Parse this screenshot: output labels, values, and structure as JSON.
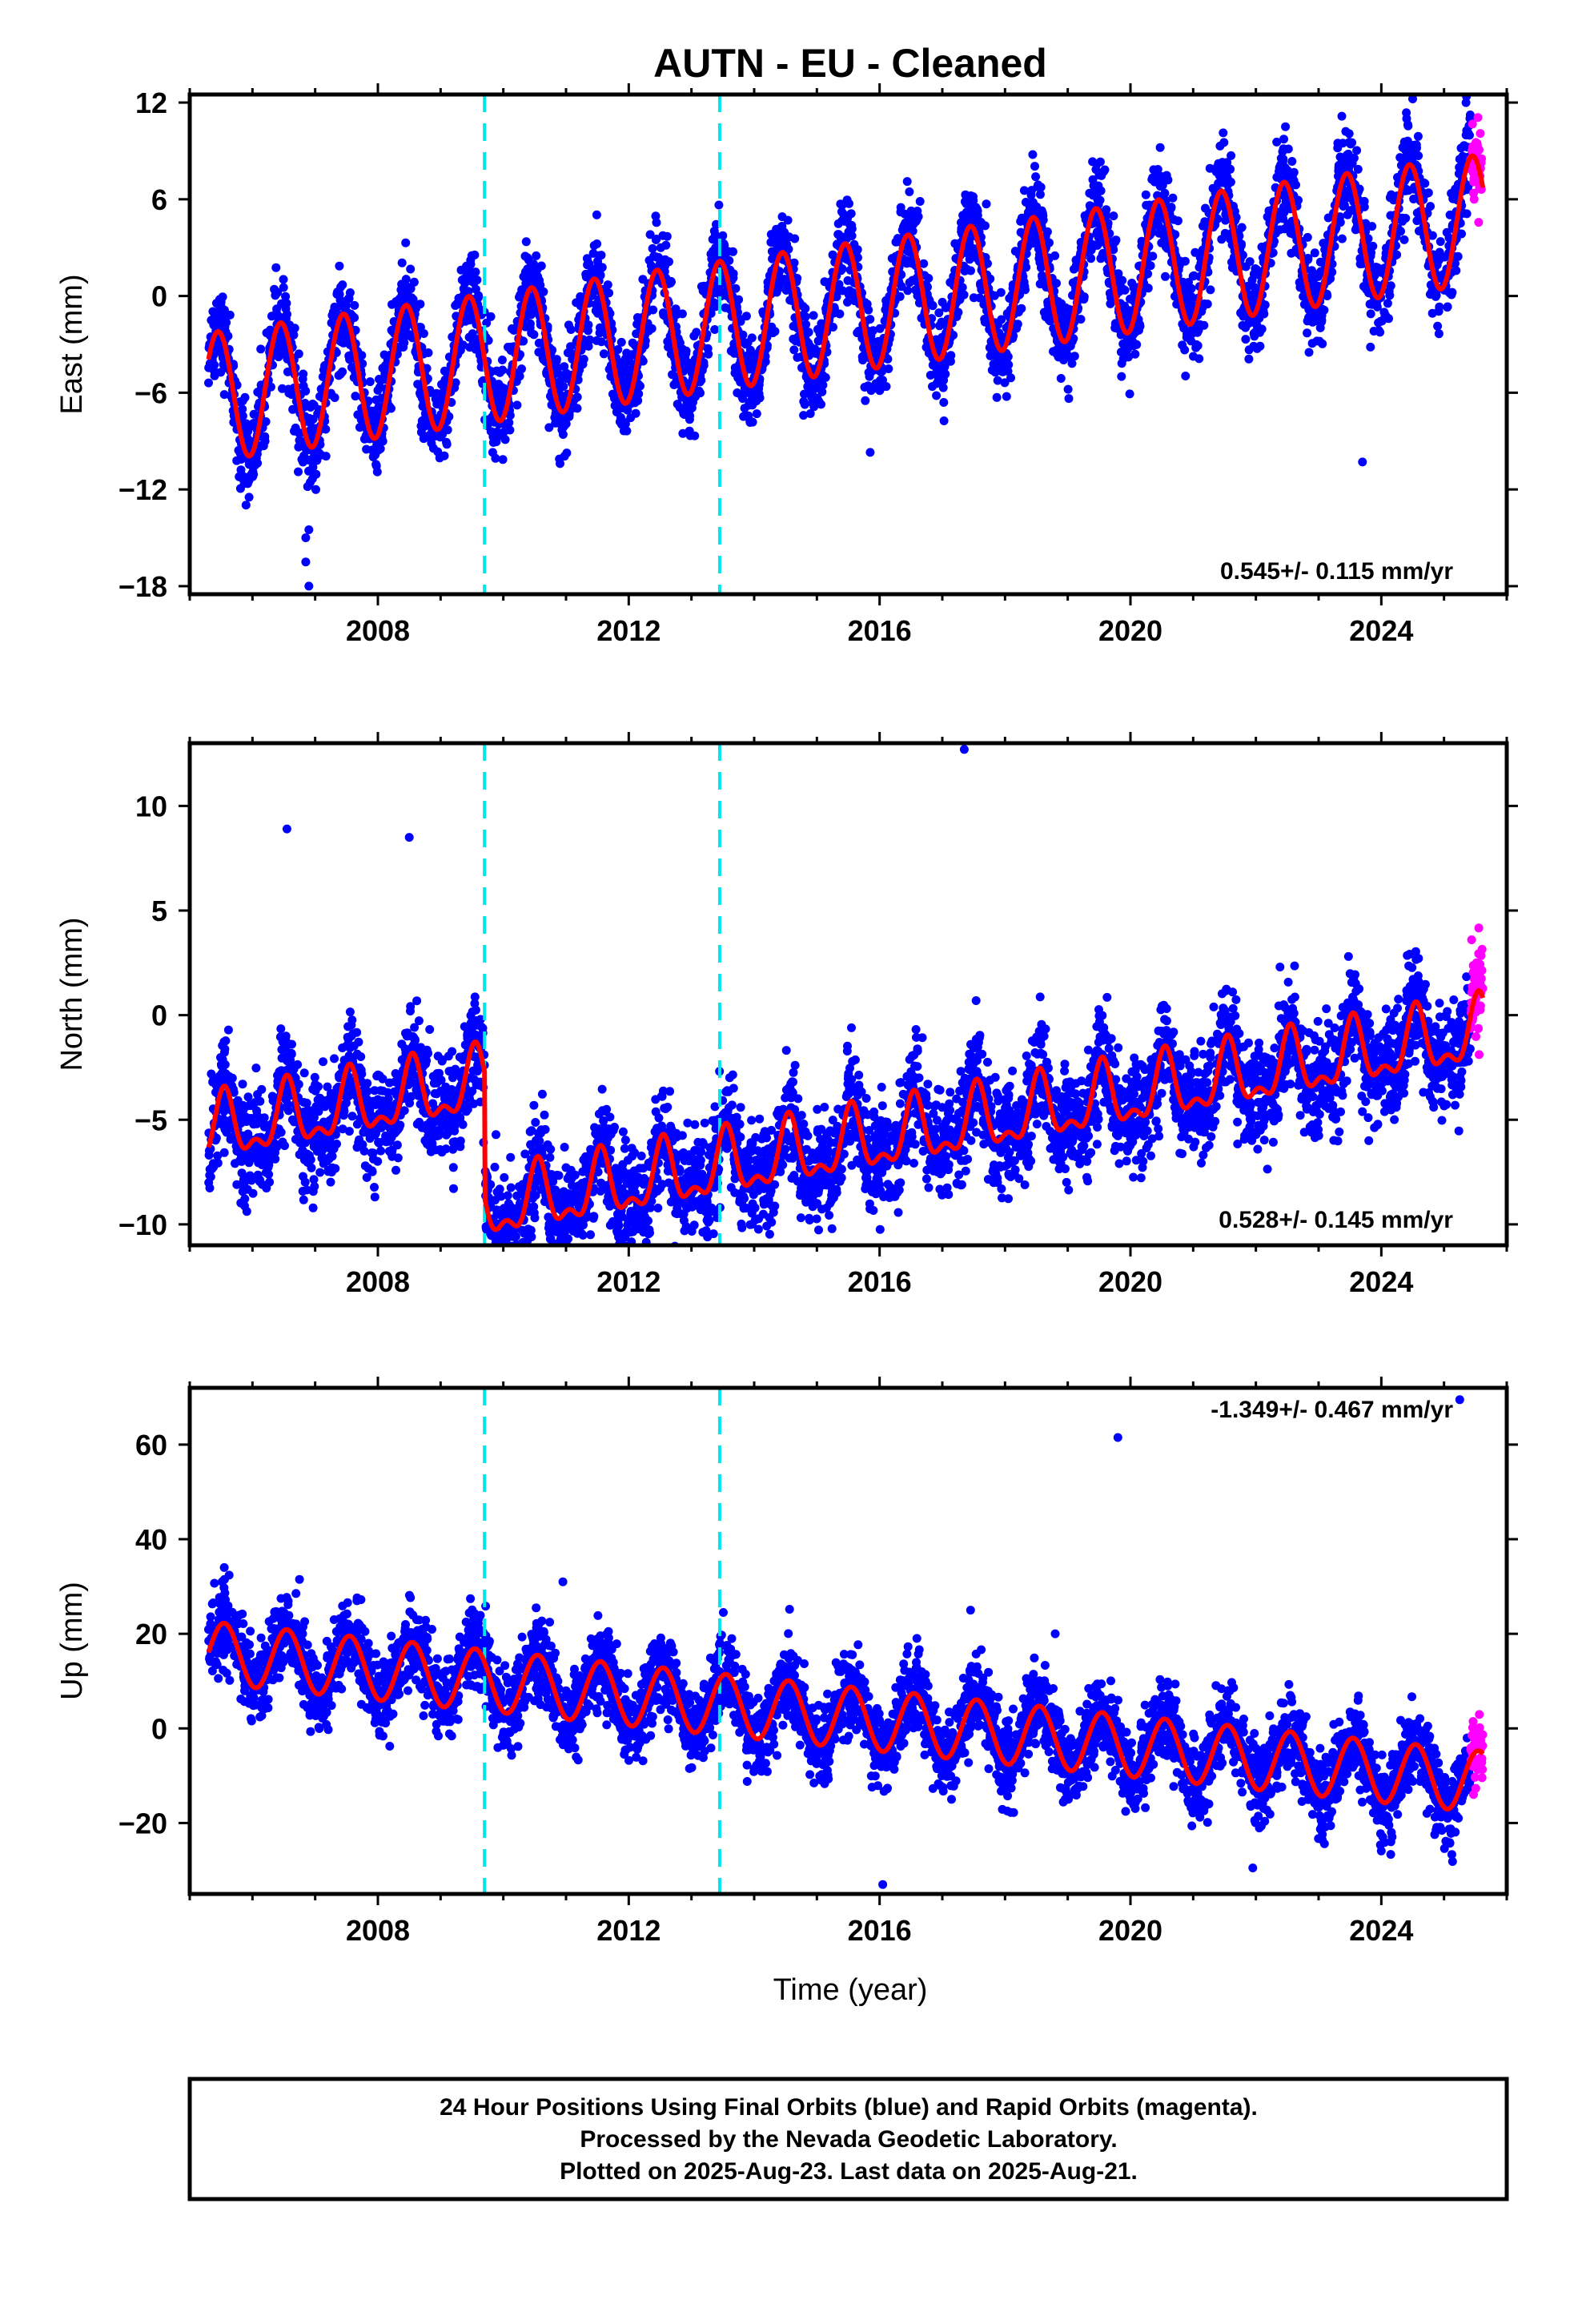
{
  "title": "AUTN  - EU - Cleaned",
  "x_axis_title": "Time (year)",
  "colors": {
    "final": "#0000ff",
    "rapid": "#ff00ff",
    "model": "#ff0000",
    "offset": "#00e5ee"
  },
  "footer": {
    "line1": "24 Hour Positions Using Final Orbits (blue) and Rapid Orbits (magenta).",
    "line2": "Processed by the Nevada Geodetic Laboratory.",
    "line3": "Plotted on 2025-Aug-23. Last data on 2025-Aug-21."
  },
  "chart_data": [
    {
      "type": "scatter",
      "component": "East",
      "ylabel": "East (mm)",
      "xlim": [
        2005.0,
        2026.0
      ],
      "ylim": [
        -18.5,
        12.5
      ],
      "xticks": [
        2008,
        2012,
        2016,
        2020,
        2024
      ],
      "yticks": [
        -18,
        -12,
        -6,
        0,
        6,
        12
      ],
      "ytick_labels": [
        "−18",
        "−12",
        "−6",
        "0",
        "6",
        "12"
      ],
      "rate_label": "0.545+/- 0.115 mm/yr",
      "offsets": [
        2009.7,
        2013.45
      ],
      "data_start": 2005.3,
      "data_end": 2025.62,
      "rapid_start": 2025.42,
      "model": {
        "trend_mm_per_yr": 0.545,
        "ref_year": 2015.0,
        "base": -1.0,
        "annual_amp": 4.0,
        "phase_year": 0.45,
        "semiannual_amp": 0.0,
        "steps": [],
        "noise": 1.4
      },
      "outliers": [
        [
          2006.9,
          -18.0
        ],
        [
          2006.85,
          -16.5
        ],
        [
          2006.85,
          -15.0
        ],
        [
          2006.9,
          -14.5
        ],
        [
          2015.85,
          -9.7
        ],
        [
          2023.7,
          -10.3
        ],
        [
          2025.35,
          12.0
        ]
      ],
      "series": [
        {
          "name": "Final Orbits",
          "role": "final"
        },
        {
          "name": "Rapid Orbits",
          "role": "rapid"
        },
        {
          "name": "Model",
          "role": "model"
        }
      ]
    },
    {
      "type": "scatter",
      "component": "North",
      "ylabel": "North (mm)",
      "xlim": [
        2005.0,
        2026.0
      ],
      "ylim": [
        -11.0,
        13.0
      ],
      "xticks": [
        2008,
        2012,
        2016,
        2020,
        2024
      ],
      "yticks": [
        -10,
        -5,
        0,
        5,
        10
      ],
      "ytick_labels": [
        "−10",
        "−5",
        "0",
        "5",
        "10"
      ],
      "rate_label": "0.528+/- 0.145 mm/yr",
      "offsets": [
        2009.7,
        2013.45
      ],
      "data_start": 2005.3,
      "data_end": 2025.62,
      "rapid_start": 2025.42,
      "model": {
        "trend_mm_per_yr": 0.528,
        "ref_year": 2015.0,
        "base": -0.5,
        "annual_amp": 1.4,
        "phase_year": 0.55,
        "semiannual_amp": 0.7,
        "steps": [
          [
            2009.7,
            -6.0
          ]
        ],
        "noise": 1.2
      },
      "outliers": [
        [
          2006.55,
          8.9
        ],
        [
          2008.5,
          8.5
        ],
        [
          2017.35,
          12.7
        ],
        [
          2005.75,
          -8.1
        ],
        [
          2007.8,
          -7.2
        ],
        [
          2010.45,
          -10.6
        ],
        [
          2010.75,
          -10.7
        ],
        [
          2014.6,
          -7.8
        ],
        [
          2023.8,
          -6.0
        ]
      ],
      "series": [
        {
          "name": "Final Orbits",
          "role": "final"
        },
        {
          "name": "Rapid Orbits",
          "role": "rapid"
        },
        {
          "name": "Model",
          "role": "model"
        }
      ]
    },
    {
      "type": "scatter",
      "component": "Up",
      "ylabel": "Up (mm)",
      "xlim": [
        2005.0,
        2026.0
      ],
      "ylim": [
        -35.0,
        72.0
      ],
      "xticks": [
        2008,
        2012,
        2016,
        2020,
        2024
      ],
      "yticks": [
        -20,
        0,
        20,
        40,
        60
      ],
      "ytick_labels": [
        "−20",
        "0",
        "20",
        "40",
        "60"
      ],
      "rate_label": "-1.349+/- 0.467 mm/yr",
      "offsets": [
        2009.7,
        2013.45
      ],
      "data_start": 2005.3,
      "data_end": 2025.62,
      "rapid_start": 2025.42,
      "model": {
        "trend_mm_per_yr": -1.349,
        "ref_year": 2015.0,
        "base": 3.0,
        "annual_amp": 6.5,
        "phase_year": 0.55,
        "semiannual_amp": 0.0,
        "steps": [],
        "noise": 4.0
      },
      "outliers": [
        [
          2019.8,
          61.5
        ],
        [
          2025.25,
          69.5
        ],
        [
          2005.55,
          34.0
        ],
        [
          2006.75,
          31.5
        ],
        [
          2010.95,
          31.0
        ],
        [
          2016.05,
          -33.0
        ],
        [
          2017.45,
          25.0
        ],
        [
          2021.95,
          -29.5
        ],
        [
          2018.8,
          20.0
        ]
      ],
      "series": [
        {
          "name": "Final Orbits",
          "role": "final"
        },
        {
          "name": "Rapid Orbits",
          "role": "rapid"
        },
        {
          "name": "Model",
          "role": "model"
        }
      ]
    }
  ]
}
